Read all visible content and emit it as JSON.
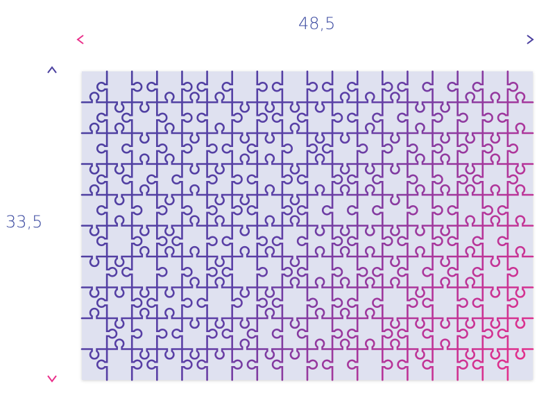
{
  "dimensions": {
    "width_label": "48,5",
    "height_label": "33,5"
  },
  "puzzle": {
    "columns": 18,
    "rows": 10
  },
  "colors": {
    "purple": "#4a3f9f",
    "pink": "#ea2f8a",
    "board": "#dfe1f0",
    "label": "#3b4aa0"
  }
}
